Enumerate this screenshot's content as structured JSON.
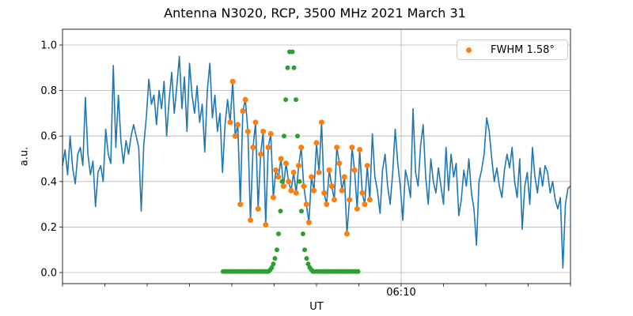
{
  "figure": {
    "title": "Antenna N3020, RCP, 3500 MHz 2021 March 31",
    "background": "#ffffff"
  },
  "axes": {
    "xlabel": "UT",
    "ylabel": "a.u.",
    "x_tick_label": "06:10",
    "x_ticks_t": [
      -40,
      -35,
      -30,
      -25,
      -20,
      -15,
      -10,
      -5,
      0,
      5,
      10,
      15,
      20
    ],
    "x_major_tick_t": 0,
    "y_ticks": [
      {
        "v": 0.0,
        "label": "0.0"
      },
      {
        "v": 0.2,
        "label": "0.2"
      },
      {
        "v": 0.4,
        "label": "0.4"
      },
      {
        "v": 0.6,
        "label": "0.6"
      },
      {
        "v": 0.8,
        "label": "0.8"
      },
      {
        "v": 1.0,
        "label": "1.0"
      }
    ],
    "grid_color": "#b0b0b0",
    "spine_color": "#262626"
  },
  "legend": {
    "label": "FWHM 1.58°",
    "marker_color": "#ff7f0e",
    "position": "upper right"
  },
  "chart_data": {
    "type": "line+scatter",
    "title": "Antenna N3020, RCP, 3500 MHz 2021 March 31",
    "xlabel": "UT",
    "ylabel": "a.u.",
    "x_axis": {
      "unit": "minutes relative to 06:10 UT",
      "range": [
        -40,
        20
      ],
      "tick_interval_min": 5,
      "labeled_tick": {
        "t": 0,
        "label": "06:10"
      },
      "grid_on_major_only": true
    },
    "y_axis": {
      "ticks": [
        0.0,
        0.2,
        0.4,
        0.6,
        0.8,
        1.0
      ],
      "view_range": [
        -0.049,
        1.069
      ],
      "grid": true
    },
    "series": [
      {
        "name": "drift-scan-signal",
        "type": "line",
        "color": "#1f77b4",
        "line_width": 1.6,
        "t_start": -40.0,
        "t_step": 0.3,
        "values": [
          0.47,
          0.54,
          0.43,
          0.6,
          0.46,
          0.39,
          0.52,
          0.55,
          0.47,
          0.77,
          0.52,
          0.43,
          0.49,
          0.29,
          0.44,
          0.47,
          0.4,
          0.63,
          0.52,
          0.48,
          0.91,
          0.55,
          0.78,
          0.58,
          0.48,
          0.58,
          0.52,
          0.6,
          0.65,
          0.6,
          0.55,
          0.27,
          0.56,
          0.68,
          0.85,
          0.74,
          0.78,
          0.65,
          0.8,
          0.72,
          0.84,
          0.6,
          0.76,
          0.88,
          0.7,
          0.82,
          0.95,
          0.72,
          0.86,
          0.62,
          0.92,
          0.78,
          0.7,
          0.82,
          0.66,
          0.74,
          0.53,
          0.8,
          0.92,
          0.68,
          0.78,
          0.62,
          0.7,
          0.44,
          0.65,
          0.76,
          0.66,
          0.84,
          0.6,
          0.65,
          0.3,
          0.71,
          0.76,
          0.62,
          0.23,
          0.55,
          0.66,
          0.28,
          0.52,
          0.62,
          0.21,
          0.55,
          0.61,
          0.33,
          0.45,
          0.42,
          0.5,
          0.38,
          0.48,
          0.4,
          0.36,
          0.44,
          0.35,
          0.47,
          0.55,
          0.38,
          0.3,
          0.22,
          0.42,
          0.36,
          0.57,
          0.44,
          0.66,
          0.35,
          0.3,
          0.45,
          0.38,
          0.32,
          0.55,
          0.48,
          0.36,
          0.42,
          0.17,
          0.32,
          0.55,
          0.45,
          0.28,
          0.54,
          0.35,
          0.3,
          0.47,
          0.32,
          0.61,
          0.42,
          0.36,
          0.26,
          0.45,
          0.52,
          0.38,
          0.3,
          0.44,
          0.63,
          0.48,
          0.38,
          0.23,
          0.45,
          0.4,
          0.33,
          0.72,
          0.44,
          0.38,
          0.56,
          0.65,
          0.42,
          0.3,
          0.5,
          0.4,
          0.35,
          0.46,
          0.38,
          0.3,
          0.55,
          0.36,
          0.52,
          0.42,
          0.48,
          0.25,
          0.32,
          0.45,
          0.38,
          0.5,
          0.35,
          0.28,
          0.12,
          0.4,
          0.45,
          0.52,
          0.68,
          0.62,
          0.5,
          0.4,
          0.46,
          0.38,
          0.33,
          0.45,
          0.52,
          0.46,
          0.55,
          0.4,
          0.33,
          0.5,
          0.19,
          0.38,
          0.44,
          0.3,
          0.55,
          0.42,
          0.35,
          0.46,
          0.38,
          0.47,
          0.44,
          0.35,
          0.4,
          0.32,
          0.28,
          0.33,
          0.02,
          0.3,
          0.37,
          0.38
        ]
      },
      {
        "name": "fit-window-samples",
        "type": "scatter",
        "color": "#ff7f0e",
        "marker_radius": 3.5,
        "legend_label": "FWHM 1.58°",
        "t_start": -20.2,
        "t_step": 0.3,
        "values": [
          0.66,
          0.84,
          0.6,
          0.65,
          0.3,
          0.71,
          0.76,
          0.62,
          0.23,
          0.55,
          0.66,
          0.28,
          0.52,
          0.62,
          0.21,
          0.55,
          0.61,
          0.33,
          0.45,
          0.42,
          0.5,
          0.38,
          0.48,
          0.4,
          0.36,
          0.44,
          0.35,
          0.47,
          0.55,
          0.38,
          0.3,
          0.22,
          0.42,
          0.36,
          0.57,
          0.44,
          0.66,
          0.35,
          0.3,
          0.45,
          0.38,
          0.32,
          0.55,
          0.48,
          0.36,
          0.42,
          0.17,
          0.32,
          0.55,
          0.45,
          0.28,
          0.54,
          0.35,
          0.3,
          0.47,
          0.32
        ]
      },
      {
        "name": "gaussian-fit-points",
        "type": "scatter",
        "color": "#2ca02c",
        "marker_radius": 3.0,
        "t": [
          -21.03,
          -20.82,
          -20.62,
          -20.41,
          -20.21,
          -20.0,
          -19.79,
          -19.59,
          -19.38,
          -19.18,
          -18.97,
          -18.77,
          -18.56,
          -18.36,
          -18.15,
          -17.94,
          -17.74,
          -17.53,
          -17.33,
          -17.12,
          -16.92,
          -16.71,
          -16.5,
          -16.3,
          -16.09,
          -15.89,
          -15.68,
          -15.47,
          -15.28,
          -15.09,
          -14.91,
          -14.67,
          -14.49,
          -14.25,
          -14.07,
          -13.83,
          -13.64,
          -13.41,
          -13.18,
          -12.85,
          -12.66,
          -12.43,
          -12.24,
          -12.01,
          -11.78,
          -11.59,
          -11.4,
          -11.17,
          -10.98,
          -10.79,
          -10.61,
          -10.42,
          -10.22,
          -10.01,
          -9.81,
          -9.6,
          -9.4,
          -9.19,
          -8.99,
          -8.78,
          -8.58,
          -8.37,
          -8.17,
          -7.96,
          -7.76,
          -7.55,
          -7.35,
          -7.14,
          -6.94,
          -6.73,
          -6.53,
          -6.32,
          -6.12,
          -5.91,
          -5.71,
          -5.5,
          -5.3,
          -5.09
        ],
        "v": [
          0.005,
          0.005,
          0.005,
          0.005,
          0.005,
          0.005,
          0.005,
          0.005,
          0.005,
          0.005,
          0.005,
          0.005,
          0.005,
          0.005,
          0.005,
          0.005,
          0.005,
          0.005,
          0.005,
          0.005,
          0.005,
          0.005,
          0.005,
          0.005,
          0.005,
          0.005,
          0.005,
          0.012,
          0.022,
          0.038,
          0.062,
          0.1,
          0.17,
          0.27,
          0.4,
          0.6,
          0.76,
          0.9,
          0.97,
          0.97,
          0.9,
          0.76,
          0.6,
          0.4,
          0.27,
          0.17,
          0.1,
          0.062,
          0.038,
          0.022,
          0.012,
          0.005,
          0.005,
          0.005,
          0.005,
          0.005,
          0.005,
          0.005,
          0.005,
          0.005,
          0.005,
          0.005,
          0.005,
          0.005,
          0.005,
          0.005,
          0.005,
          0.005,
          0.005,
          0.005,
          0.005,
          0.005,
          0.005,
          0.005,
          0.005,
          0.005,
          0.005,
          0.005
        ]
      }
    ],
    "legend_position": "upper right"
  }
}
